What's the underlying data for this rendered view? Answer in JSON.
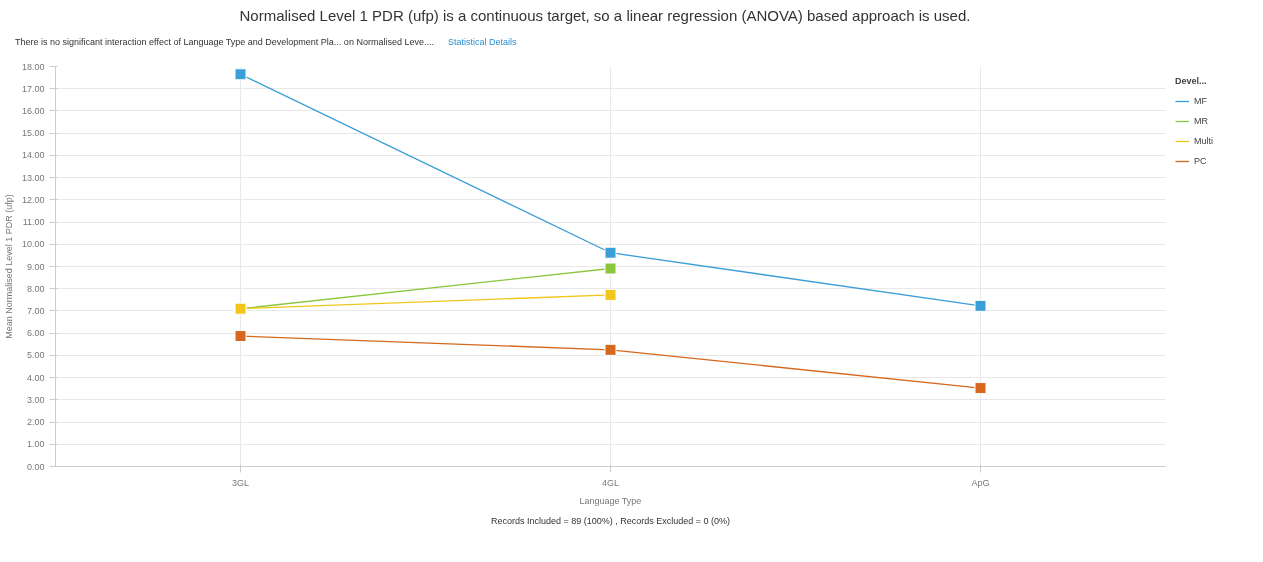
{
  "chart_data": {
    "type": "line",
    "title": "Normalised Level 1 PDR (ufp) is a continuous target, so a linear regression (ANOVA) based approach is used.",
    "subtitle": "There is no significant interaction effect of Language Type and Development Pla... on Normalised Leve....",
    "annotations": [
      "Statistical Details",
      "Records Included = 89 (100%) , Records Excluded = 0 (0%)"
    ],
    "xlabel": "Language Type",
    "ylabel": "Mean Normalised Level 1 PDR (ufp)",
    "legend_title": "Devel...",
    "categories": [
      "3GL",
      "4GL",
      "ApG"
    ],
    "series": [
      {
        "name": "MF",
        "color": "#3a9fd6",
        "values": [
          17.65,
          9.62,
          7.23
        ]
      },
      {
        "name": "MR",
        "color": "#8cc63f",
        "values": [
          7.1,
          8.91,
          null
        ]
      },
      {
        "name": "Multi",
        "color": "#f2c618",
        "values": [
          7.1,
          7.72,
          null
        ]
      },
      {
        "name": "PC",
        "color": "#d5681c",
        "values": [
          5.87,
          5.25,
          3.53
        ]
      }
    ],
    "ylim": [
      0,
      18
    ],
    "yticks": [
      {
        "value": 0,
        "label": "0.00"
      },
      {
        "value": 1,
        "label": "1.00"
      },
      {
        "value": 2,
        "label": "2.00"
      },
      {
        "value": 3,
        "label": "3.00"
      },
      {
        "value": 4,
        "label": "4.00"
      },
      {
        "value": 5,
        "label": "5.00"
      },
      {
        "value": 6,
        "label": "6.00"
      },
      {
        "value": 7,
        "label": "7.00"
      },
      {
        "value": 8,
        "label": "8.00"
      },
      {
        "value": 9,
        "label": "9.00"
      },
      {
        "value": 10,
        "label": "10.00"
      },
      {
        "value": 11,
        "label": "11.00"
      },
      {
        "value": 12,
        "label": "12.00"
      },
      {
        "value": 13,
        "label": "13.00"
      },
      {
        "value": 14,
        "label": "14.00"
      },
      {
        "value": 15,
        "label": "15.00"
      },
      {
        "value": 16,
        "label": "16.00"
      },
      {
        "value": 17,
        "label": "17.00"
      },
      {
        "value": 18,
        "label": "18.00"
      }
    ],
    "grid": true,
    "legend": "top right",
    "marker": "square",
    "line_style": "solid"
  }
}
